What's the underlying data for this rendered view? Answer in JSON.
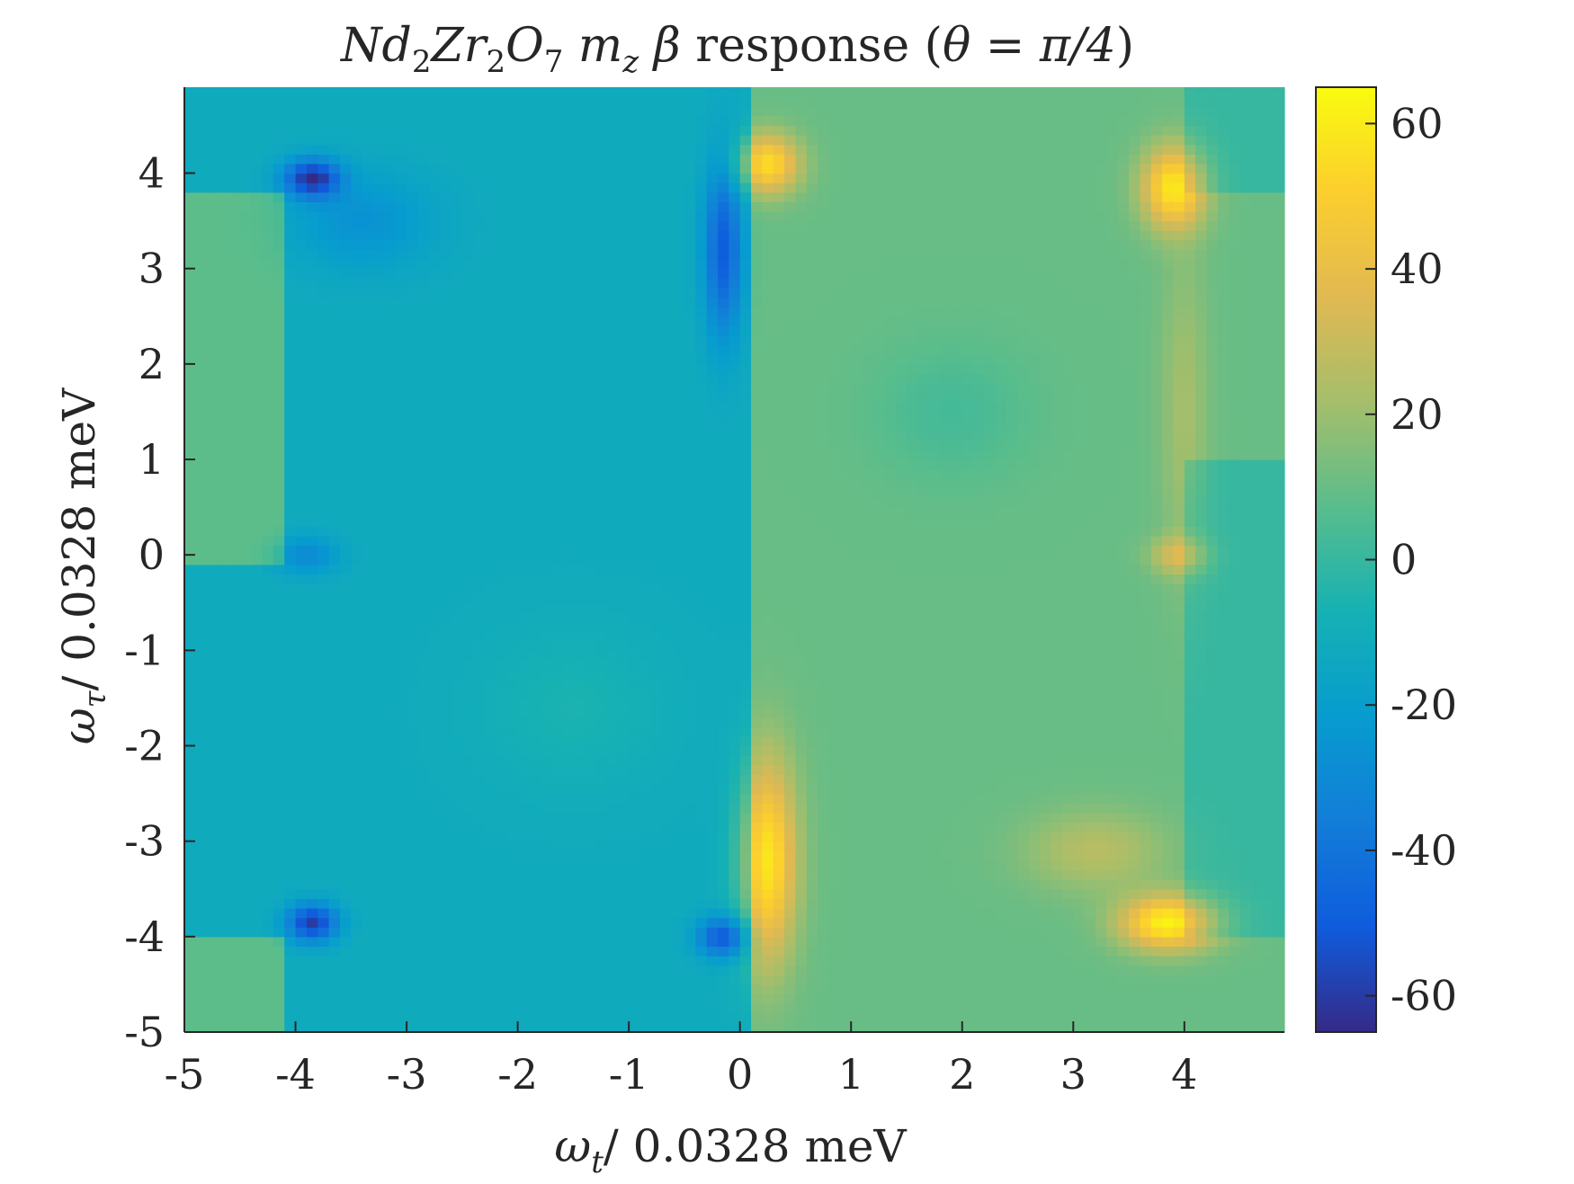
{
  "chart_data": {
    "type": "heatmap",
    "title": {
      "compound": [
        "N",
        "d",
        "2",
        "Z",
        "r",
        "2",
        "O",
        "7"
      ],
      "quantity": "m",
      "quantity_sub": "z",
      "beta": "β",
      "word": "response",
      "angle_open": "(",
      "theta": "θ",
      "equals": "=",
      "angle_value": "π/4",
      "angle_close": ")"
    },
    "xlabel": {
      "symbol": "ω",
      "subscript": "t",
      "text": "/ 0.0328 meV"
    },
    "ylabel": {
      "symbol": "ω",
      "subscript": "τ",
      "text": "/ 0.0328 meV"
    },
    "xlim": [
      -5,
      4.9
    ],
    "ylim": [
      -5,
      4.9
    ],
    "xticks": [
      -5,
      -4,
      -3,
      -2,
      -1,
      0,
      1,
      2,
      3,
      4
    ],
    "yticks": [
      -5,
      -4,
      -3,
      -2,
      -1,
      0,
      1,
      2,
      3,
      4
    ],
    "colorbar": {
      "range": [
        -65,
        65
      ],
      "ticks": [
        -60,
        -40,
        -20,
        0,
        20,
        40,
        60
      ],
      "colormap": "parula"
    },
    "grid": false,
    "features": [
      {
        "wt": -3.85,
        "wtau": 3.95,
        "value": -62,
        "label": "minimum"
      },
      {
        "wt": -3.85,
        "wtau": -3.85,
        "value": -60,
        "label": "minimum"
      },
      {
        "wt": -0.15,
        "wtau": 3.2,
        "value": -48,
        "label": "minimum"
      },
      {
        "wt": -0.15,
        "wtau": -4.0,
        "value": -52,
        "label": "minimum"
      },
      {
        "wt": -3.9,
        "wtau": 0.0,
        "value": -30,
        "label": "minimum"
      },
      {
        "wt": 0.25,
        "wtau": 4.1,
        "value": 55,
        "label": "maximum"
      },
      {
        "wt": 0.25,
        "wtau": -3.2,
        "value": 58,
        "label": "maximum"
      },
      {
        "wt": 3.9,
        "wtau": 3.85,
        "value": 58,
        "label": "maximum"
      },
      {
        "wt": 3.9,
        "wtau": -3.9,
        "value": 62,
        "label": "maximum"
      },
      {
        "wt": 3.95,
        "wtau": 0.0,
        "value": 30,
        "label": "maximum"
      }
    ]
  }
}
